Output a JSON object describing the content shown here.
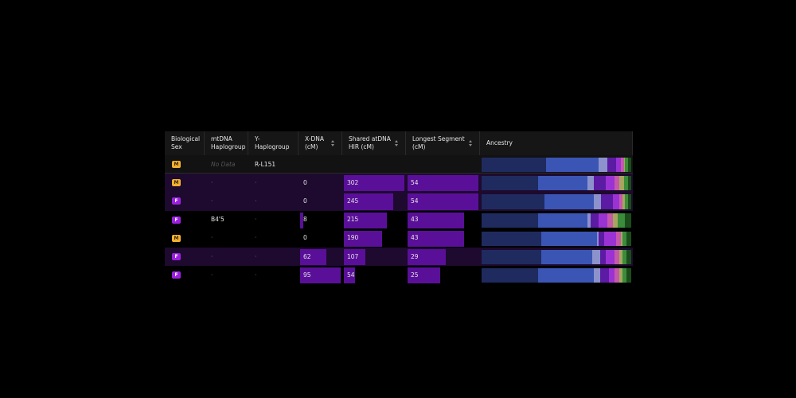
{
  "table": {
    "headers": [
      "Biological Sex",
      "mtDNA Haplogroup",
      "Y-Haplogroup",
      "X-DNA (cM)",
      "Shared atDNA HIR (cM)",
      "Longest Segment (cM)",
      "Ancestry"
    ],
    "sortable": [
      false,
      false,
      false,
      true,
      true,
      true,
      false
    ],
    "ancestry_colors": [
      "#1f2b5f",
      "#3b55b5",
      "#8c92cc",
      "#5b1ca3",
      "#9b32d4",
      "#c45aa8",
      "#a8a55e",
      "#3b8c3b",
      "#1b4d1b"
    ],
    "rows": [
      {
        "sex": "M",
        "mtdna": "No Data",
        "yhap": "R-L151",
        "xdna": null,
        "shared": null,
        "longest": null,
        "highlight": false,
        "self": true,
        "ancestry": [
          43,
          35,
          6,
          6,
          3,
          2,
          1,
          2,
          2
        ]
      },
      {
        "sex": "M",
        "mtdna": "·",
        "yhap": "·",
        "xdna": 0,
        "shared": 302,
        "longest": 54,
        "highlight": true,
        "self": false,
        "ancestry": [
          38,
          33,
          4,
          8,
          6,
          3,
          3,
          3,
          2
        ]
      },
      {
        "sex": "F",
        "mtdna": "·",
        "yhap": "·",
        "xdna": 0,
        "shared": 245,
        "longest": 54,
        "highlight": true,
        "self": false,
        "ancestry": [
          42,
          33,
          5,
          8,
          4,
          2,
          2,
          2,
          2
        ]
      },
      {
        "sex": "F",
        "mtdna": "B4'5",
        "yhap": "·",
        "xdna": 8,
        "shared": 215,
        "longest": 43,
        "highlight": false,
        "self": false,
        "ancestry": [
          38,
          33,
          2,
          5,
          6,
          4,
          3,
          5,
          4
        ]
      },
      {
        "sex": "M",
        "mtdna": "·",
        "yhap": "·",
        "xdna": 0,
        "shared": 190,
        "longest": 43,
        "highlight": false,
        "self": false,
        "ancestry": [
          40,
          37,
          1,
          4,
          8,
          3,
          1,
          3,
          3
        ]
      },
      {
        "sex": "F",
        "mtdna": "·",
        "yhap": "·",
        "xdna": 62,
        "shared": 107,
        "longest": 29,
        "highlight": true,
        "self": false,
        "ancestry": [
          40,
          34,
          5,
          4,
          6,
          3,
          2,
          3,
          3
        ]
      },
      {
        "sex": "F",
        "mtdna": "·",
        "yhap": "·",
        "xdna": 95,
        "shared": 54,
        "longest": 25,
        "highlight": false,
        "self": false,
        "ancestry": [
          38,
          37,
          4,
          6,
          4,
          3,
          2,
          3,
          3
        ]
      }
    ]
  }
}
